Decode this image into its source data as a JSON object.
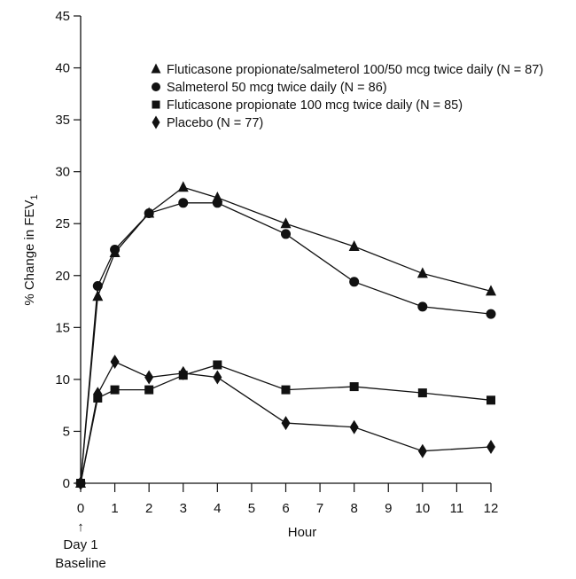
{
  "chart_data": {
    "type": "line",
    "xlabel": "Hour",
    "ylabel": "% Change in FEV",
    "ylabel_subscript": "1",
    "x_annotation": {
      "arrow": "↑",
      "line1": "Day 1",
      "line2": "Baseline"
    },
    "xlim": [
      0,
      12
    ],
    "ylim": [
      0,
      45
    ],
    "x_ticks": [
      0,
      1,
      2,
      3,
      4,
      5,
      6,
      7,
      8,
      9,
      10,
      11,
      12
    ],
    "y_ticks": [
      0,
      5,
      10,
      15,
      20,
      25,
      30,
      35,
      40,
      45
    ],
    "grid": false,
    "legend_placement": "top-right",
    "x": [
      0,
      0.5,
      1,
      2,
      3,
      4,
      6,
      8,
      10,
      12
    ],
    "series": [
      {
        "name": "Fluticasone propionate/salmeterol 100/50 mcg twice daily (N = 87)",
        "marker": "triangle",
        "values": [
          0,
          18,
          22.2,
          26,
          28.5,
          27.5,
          25,
          22.8,
          20.2,
          18.5
        ]
      },
      {
        "name": "Salmeterol 50 mcg twice daily (N = 86)",
        "marker": "circle",
        "values": [
          0,
          19,
          22.5,
          26,
          27,
          27,
          24,
          19.4,
          17,
          16.3
        ]
      },
      {
        "name": "Fluticasone propionate 100 mcg twice daily (N = 85)",
        "marker": "square",
        "values": [
          0,
          8.2,
          9,
          9,
          10.4,
          11.4,
          9,
          9.3,
          8.7,
          8
        ]
      },
      {
        "name": "Placebo (N = 77)",
        "marker": "diamond",
        "values": [
          0,
          8.6,
          11.7,
          10.2,
          10.6,
          10.2,
          5.8,
          5.4,
          3.1,
          3.5
        ]
      }
    ],
    "colors": {
      "ink": "#111111"
    }
  }
}
